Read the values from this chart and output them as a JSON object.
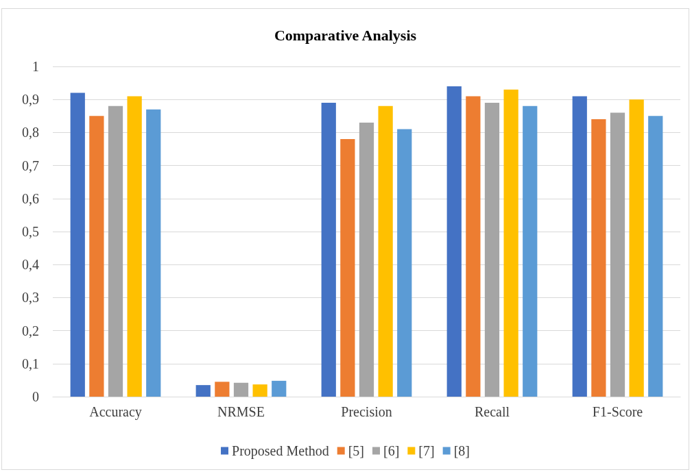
{
  "chart_data": {
    "type": "bar",
    "title": "Comparative Analysis",
    "categories": [
      "Accuracy",
      "NRMSE",
      "Precision",
      "Recall",
      "F1-Score"
    ],
    "series": [
      {
        "name": "Proposed Method",
        "color": "#4472c4",
        "values": [
          0.92,
          0.035,
          0.89,
          0.94,
          0.91
        ]
      },
      {
        "name": "[5]",
        "color": "#ed7d31",
        "values": [
          0.85,
          0.045,
          0.78,
          0.91,
          0.84
        ]
      },
      {
        "name": "[6]",
        "color": "#a5a5a5",
        "values": [
          0.88,
          0.042,
          0.83,
          0.89,
          0.86
        ]
      },
      {
        "name": "[7]",
        "color": "#ffc000",
        "values": [
          0.91,
          0.037,
          0.88,
          0.93,
          0.9
        ]
      },
      {
        "name": "[8]",
        "color": "#5b9bd5",
        "values": [
          0.87,
          0.048,
          0.81,
          0.88,
          0.85
        ]
      }
    ],
    "ylim": [
      0,
      1
    ],
    "yticks": [
      0,
      {
        "value": 0.1,
        "label": "0,1"
      },
      {
        "value": 0.2,
        "label": "0,2"
      },
      {
        "value": 0.3,
        "label": "0,3"
      },
      {
        "value": 0.4,
        "label": "0,4"
      },
      {
        "value": 0.5,
        "label": "0,5"
      },
      {
        "value": 0.6,
        "label": "0,6"
      },
      {
        "value": 0.7,
        "label": "0,7"
      },
      {
        "value": 0.8,
        "label": "0,8"
      },
      {
        "value": 0.9,
        "label": "0,9"
      },
      1
    ],
    "grid": "y",
    "legend": "bottom"
  }
}
